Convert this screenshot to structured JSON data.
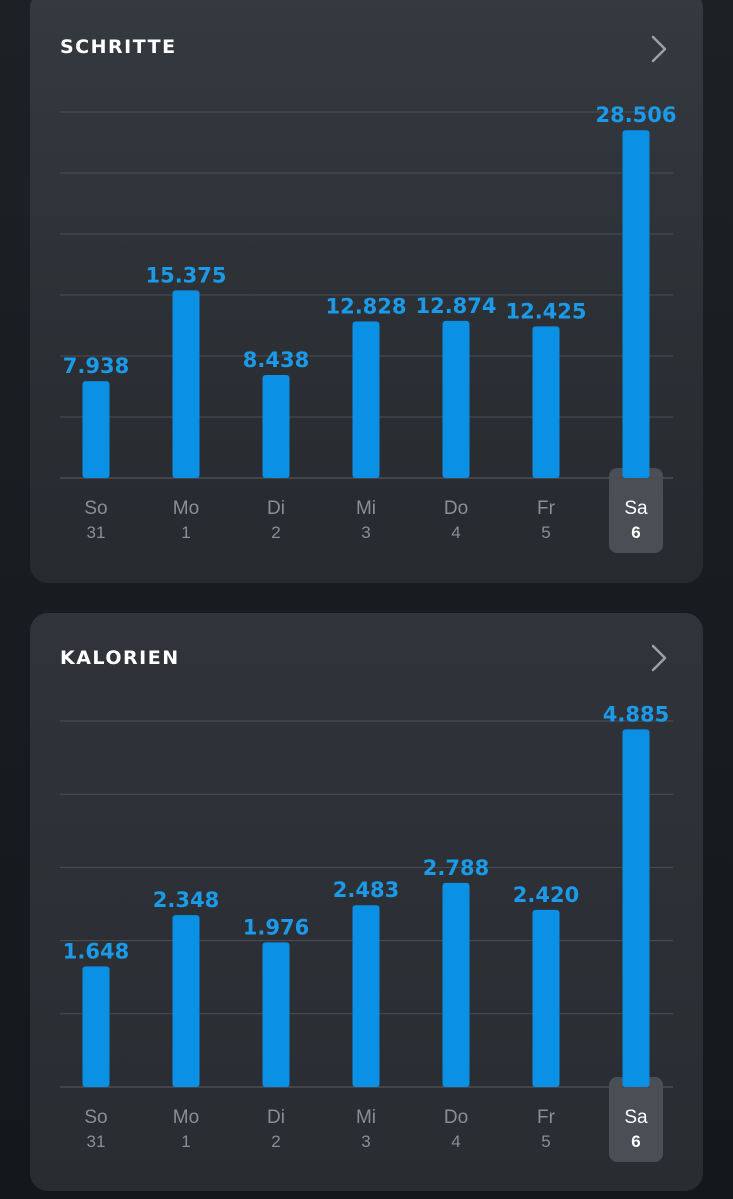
{
  "cards": {
    "steps": {
      "title": "SCHRITTE",
      "chevron_icon": "chevron-right-icon"
    },
    "calories": {
      "title": "KALORIEN",
      "chevron_icon": "chevron-right-icon"
    }
  },
  "colors": {
    "bar": "#0a91e6",
    "value_label": "#1a9ae8",
    "gridline": "#4a4f55",
    "day_label": "#8a8f95",
    "selected_day_label": "#ffffff",
    "selected_highlight": "#4a4f55"
  },
  "chart_data": [
    {
      "type": "bar",
      "title": "SCHRITTE",
      "categories": [
        "So 31",
        "Mo 1",
        "Di 2",
        "Mi 3",
        "Do 4",
        "Fr 5",
        "Sa 6"
      ],
      "day_names": [
        "So",
        "Mo",
        "Di",
        "Mi",
        "Do",
        "Fr",
        "Sa"
      ],
      "day_numbers": [
        "31",
        "1",
        "2",
        "3",
        "4",
        "5",
        "6"
      ],
      "values": [
        7938,
        15375,
        8438,
        12828,
        12874,
        12425,
        28506
      ],
      "value_labels": [
        "7.938",
        "15.375",
        "8.438",
        "12.828",
        "12.874",
        "12.425",
        "28.506"
      ],
      "selected_index": 6,
      "ylim": [
        0,
        30000
      ],
      "grid": true
    },
    {
      "type": "bar",
      "title": "KALORIEN",
      "categories": [
        "So 31",
        "Mo 1",
        "Di 2",
        "Mi 3",
        "Do 4",
        "Fr 5",
        "Sa 6"
      ],
      "day_names": [
        "So",
        "Mo",
        "Di",
        "Mi",
        "Do",
        "Fr",
        "Sa"
      ],
      "day_numbers": [
        "31",
        "1",
        "2",
        "3",
        "4",
        "5",
        "6"
      ],
      "values": [
        1648,
        2348,
        1976,
        2483,
        2788,
        2420,
        4885
      ],
      "value_labels": [
        "1.648",
        "2.348",
        "1.976",
        "2.483",
        "2.788",
        "2.420",
        "4.885"
      ],
      "selected_index": 6,
      "ylim": [
        0,
        5000
      ],
      "grid": true
    }
  ]
}
